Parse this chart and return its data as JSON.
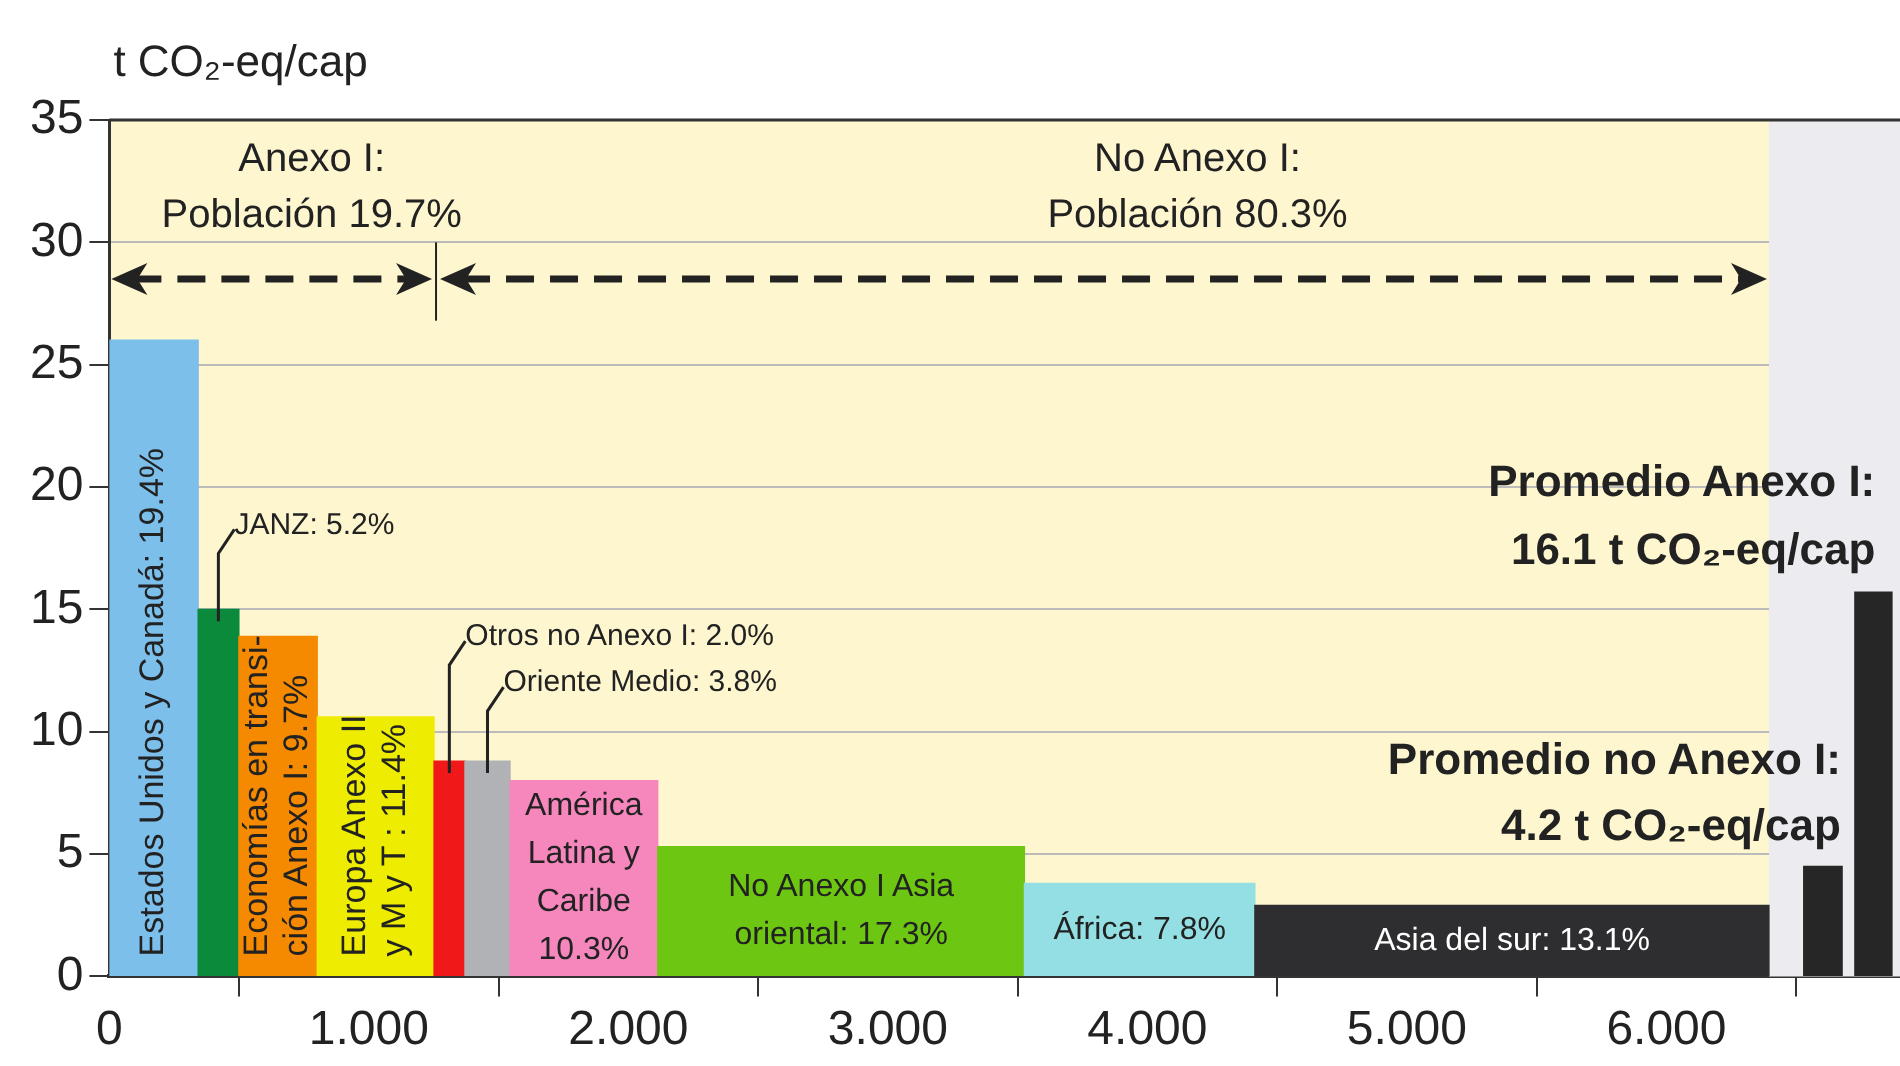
{
  "chart_data": {
    "type": "histogram",
    "ylabel": "t CO₂-eq/cap",
    "bins": [
      0,
      0.342,
      0.499,
      0.801,
      1.251,
      1.37,
      1.544,
      2.113,
      3.526,
      4.414,
      6.395,
      6.529,
      6.677,
      6.726,
      6.869
    ],
    "values": [
      26.0,
      15.0,
      13.9,
      10.6,
      8.8,
      8.8,
      8.0,
      5.3,
      3.8,
      2.9,
      null,
      4.5,
      null,
      15.7
    ],
    "colors": [
      "#7cbfea",
      "#0a8a3a",
      "#f58a00",
      "#eeec00",
      "#f01818",
      "#b0b2b5",
      "#f687bd",
      "#6cc612",
      "#94dfe3",
      "#2e2e30",
      null,
      "#262626",
      null,
      "#262626"
    ],
    "xlim": [
      0,
      6.9
    ],
    "ylim": [
      0,
      35
    ],
    "xticks": [
      0,
      {
        "value": 1,
        "label": "1.000"
      },
      {
        "value": 2,
        "label": "2.000"
      },
      {
        "value": 3,
        "label": "3.000"
      },
      {
        "value": 4,
        "label": "4.000"
      },
      {
        "value": 5,
        "label": "5.000"
      },
      {
        "value": 6,
        "label": "6.000"
      }
    ],
    "yticks": [
      0,
      5,
      10,
      15,
      20,
      25,
      30,
      35
    ],
    "grid": "y",
    "bands": [
      {
        "axis": "x",
        "from": 6.395,
        "to": 6.9,
        "color": "#ececf0"
      }
    ],
    "annotations": [
      "Anexo I:\nPoblación 19.7%",
      "No Anexo I:\nPoblación 80.3%",
      "Estados Unidos y Canadá: 19.4%",
      "Economías en transi-\nción Anexo I: 9.7%",
      "Europa Anexo II\ny M y T : 11.4%",
      {
        "text": "JANZ: 5.2%",
        "x": 0.42,
        "y": 15.0
      },
      {
        "text": "Otros no Anexo I: 2.0%",
        "x": 1.31,
        "y": 8.8
      },
      {
        "text": "Oriente Medio: 3.8%",
        "x": 1.457,
        "y": 8.8
      },
      {
        "text": "América\nLatina y\nCaribe\n10.3%",
        "x": 1.828,
        "y": 8.0
      },
      {
        "text": "No Anexo I Asia\noriental: 17.3%",
        "x": 2.82,
        "y": 5.3
      },
      {
        "text": "África: 7.8%",
        "x": 3.97,
        "y": 3.8
      },
      {
        "text": "Asia del sur: 13.1%",
        "x": 5.405,
        "y": 2.9
      },
      {
        "text": "Promedio Anexo I:\n16.1 t CO₂-eq/cap",
        "x": 6.797,
        "y": 15.7
      },
      {
        "text": "Promedio no Anexo I:\n4.2 t CO₂-eq/cap",
        "x": 6.603,
        "y": 4.5
      }
    ]
  }
}
